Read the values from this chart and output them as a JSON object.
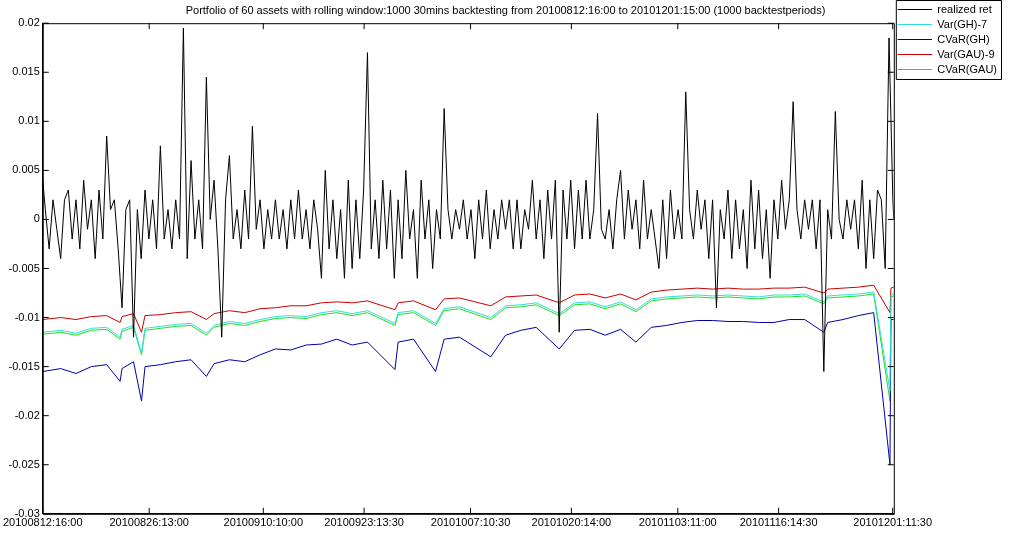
{
  "chart_data": {
    "type": "line",
    "title": "Portfolio of 60 assets with rolling window:1000 30mins backtesting from 20100812:16:00 to 20101201:15:00 (1000 backtestperiods)",
    "xlim": [
      "2010-08-12T16:00",
      "2010-12-01T15:00"
    ],
    "xticks": [
      {
        "value": "2010-08-12T16:00",
        "label": "20100812:16:00"
      },
      {
        "value": "2010-08-26T13:00",
        "label": "20100826:13:00"
      },
      {
        "value": "2010-09-10T10:00",
        "label": "20100910:10:00"
      },
      {
        "value": "2010-09-23T13:30",
        "label": "20100923:13:30"
      },
      {
        "value": "2010-10-07T10:30",
        "label": "20101007:10:30"
      },
      {
        "value": "2010-10-20T14:00",
        "label": "20101020:14:00"
      },
      {
        "value": "2010-11-03T11:00",
        "label": "20101103:11:00"
      },
      {
        "value": "2010-11-16T14:30",
        "label": "20101116:14:30"
      },
      {
        "value": "2010-12-01T11:30",
        "label": "20101201:11:30"
      }
    ],
    "ylim": [
      -0.03,
      0.02
    ],
    "yticks": [
      -0.03,
      -0.025,
      -0.02,
      -0.015,
      -0.01,
      -0.005,
      0,
      0.005,
      0.01,
      0.015,
      0.02
    ],
    "grid": false,
    "legend": "top right",
    "marker": "none",
    "line_style": "solid",
    "x": [
      "2010-08-12T16:00",
      "2010-08-15",
      "2010-08-17",
      "2010-08-19",
      "2010-08-21",
      "2010-08-22T18:00",
      "2010-08-23",
      "2010-08-24T12:00",
      "2010-08-25T13:00",
      "2010-08-26",
      "2010-08-28",
      "2010-08-30",
      "2010-09-01",
      "2010-09-03",
      "2010-09-04",
      "2010-09-06",
      "2010-09-08",
      "2010-09-10",
      "2010-09-12",
      "2010-09-14",
      "2010-09-16",
      "2010-09-18",
      "2010-09-20",
      "2010-09-22",
      "2010-09-24",
      "2010-09-27T14:00",
      "2010-09-28",
      "2010-09-30",
      "2010-10-02T21:00",
      "2010-10-04",
      "2010-10-06",
      "2010-10-10T02:00",
      "2010-10-12",
      "2010-10-14",
      "2010-10-16",
      "2010-10-19",
      "2010-10-21",
      "2010-10-23",
      "2010-10-25",
      "2010-10-27",
      "2010-10-29",
      "2010-10-31",
      "2010-11-02",
      "2010-11-04",
      "2010-11-06",
      "2010-11-08",
      "2010-11-10",
      "2010-11-12",
      "2010-11-14",
      "2010-11-16",
      "2010-11-18",
      "2010-11-20",
      "2010-11-22T12:00",
      "2010-11-23",
      "2010-11-25",
      "2010-11-27",
      "2010-11-29",
      "2010-12-01T03:00",
      "2010-12-01T06:00",
      "2010-12-01T15:00"
    ],
    "series": [
      {
        "name": "realized ret",
        "color": "#000000",
        "x": [
          "2010-08-12T16:00",
          "2010-08-13T00:00",
          "2010-08-13T12:00",
          "2010-08-14T00:00",
          "2010-08-14T12:00",
          "2010-08-15T00:00",
          "2010-08-15T12:00",
          "2010-08-16T00:00",
          "2010-08-16T12:00",
          "2010-08-17T00:00",
          "2010-08-17T12:00",
          "2010-08-18T00:00",
          "2010-08-18T12:00",
          "2010-08-19T00:00",
          "2010-08-19T12:00",
          "2010-08-20T00:00",
          "2010-08-20T12:00",
          "2010-08-21T00:00",
          "2010-08-21T12:00",
          "2010-08-22T00:00",
          "2010-08-22T12:00",
          "2010-08-23T00:00",
          "2010-08-23T12:00",
          "2010-08-24T00:00",
          "2010-08-24T12:00",
          "2010-08-25T00:00",
          "2010-08-25T12:00",
          "2010-08-26T00:00",
          "2010-08-26T12:00",
          "2010-08-27T00:00",
          "2010-08-27T12:00",
          "2010-08-28T00:00",
          "2010-08-28T12:00",
          "2010-08-29T00:00",
          "2010-08-29T12:00",
          "2010-08-30T00:00",
          "2010-08-30T12:00",
          "2010-08-31T00:00",
          "2010-08-31T12:00",
          "2010-09-01T00:00",
          "2010-09-01T12:00",
          "2010-09-02T00:00",
          "2010-09-02T12:00",
          "2010-09-03T00:00",
          "2010-09-03T12:00",
          "2010-09-04T00:00",
          "2010-09-04T12:00",
          "2010-09-05T00:00",
          "2010-09-05T12:00",
          "2010-09-06T00:00",
          "2010-09-06T12:00",
          "2010-09-07T00:00",
          "2010-09-07T12:00",
          "2010-09-08T00:00",
          "2010-09-08T12:00",
          "2010-09-09T00:00",
          "2010-09-09T12:00",
          "2010-09-10T00:00",
          "2010-09-10T12:00",
          "2010-09-11T00:00",
          "2010-09-11T12:00",
          "2010-09-12T00:00",
          "2010-09-12T12:00",
          "2010-09-13T00:00",
          "2010-09-13T12:00",
          "2010-09-14T00:00",
          "2010-09-14T12:00",
          "2010-09-15T00:00",
          "2010-09-15T12:00",
          "2010-09-16T00:00",
          "2010-09-16T12:00",
          "2010-09-17T00:00",
          "2010-09-17T12:00",
          "2010-09-18T00:00",
          "2010-09-18T12:00",
          "2010-09-19T00:00",
          "2010-09-19T12:00",
          "2010-09-20T00:00",
          "2010-09-20T12:00",
          "2010-09-21T00:00",
          "2010-09-21T12:00",
          "2010-09-22T00:00",
          "2010-09-22T12:00",
          "2010-09-23T00:00",
          "2010-09-23T12:00",
          "2010-09-24T00:00",
          "2010-09-24T12:00",
          "2010-09-25T00:00",
          "2010-09-25T12:00",
          "2010-09-26T00:00",
          "2010-09-26T12:00",
          "2010-09-27T00:00",
          "2010-09-27T12:00",
          "2010-09-28T00:00",
          "2010-09-28T12:00",
          "2010-09-29T00:00",
          "2010-09-29T12:00",
          "2010-09-30T00:00",
          "2010-09-30T12:00",
          "2010-10-01T00:00",
          "2010-10-01T12:00",
          "2010-10-02T00:00",
          "2010-10-02T12:00",
          "2010-10-03T00:00",
          "2010-10-03T12:00",
          "2010-10-04T00:00",
          "2010-10-04T12:00",
          "2010-10-05T00:00",
          "2010-10-05T12:00",
          "2010-10-06T00:00",
          "2010-10-06T12:00",
          "2010-10-07T00:00",
          "2010-10-07T12:00",
          "2010-10-08T00:00",
          "2010-10-08T12:00",
          "2010-10-09T00:00",
          "2010-10-09T12:00",
          "2010-10-10T00:00",
          "2010-10-10T12:00",
          "2010-10-11T00:00",
          "2010-10-11T12:00",
          "2010-10-12T00:00",
          "2010-10-12T12:00",
          "2010-10-13T00:00",
          "2010-10-13T12:00",
          "2010-10-14T00:00",
          "2010-10-14T12:00",
          "2010-10-15T00:00",
          "2010-10-15T12:00",
          "2010-10-16T00:00",
          "2010-10-16T12:00",
          "2010-10-17T00:00",
          "2010-10-17T12:00",
          "2010-10-18T00:00",
          "2010-10-18T12:00",
          "2010-10-19T00:00",
          "2010-10-19T12:00",
          "2010-10-20T00:00",
          "2010-10-20T12:00",
          "2010-10-21T00:00",
          "2010-10-21T12:00",
          "2010-10-22T00:00",
          "2010-10-22T12:00",
          "2010-10-23T00:00",
          "2010-10-23T12:00",
          "2010-10-24T00:00",
          "2010-10-24T12:00",
          "2010-10-25T00:00",
          "2010-10-25T12:00",
          "2010-10-26T00:00",
          "2010-10-26T12:00",
          "2010-10-27T00:00",
          "2010-10-27T12:00",
          "2010-10-28T00:00",
          "2010-10-28T12:00",
          "2010-10-29T00:00",
          "2010-10-29T12:00",
          "2010-10-30T00:00",
          "2010-10-30T12:00",
          "2010-10-31T00:00",
          "2010-10-31T12:00",
          "2010-11-01T00:00",
          "2010-11-01T12:00",
          "2010-11-02T00:00",
          "2010-11-02T12:00",
          "2010-11-03T00:00",
          "2010-11-03T12:00",
          "2010-11-04T00:00",
          "2010-11-04T12:00",
          "2010-11-05T00:00",
          "2010-11-05T12:00",
          "2010-11-06T00:00",
          "2010-11-06T12:00",
          "2010-11-07T00:00",
          "2010-11-07T12:00",
          "2010-11-08T00:00",
          "2010-11-08T12:00",
          "2010-11-09T00:00",
          "2010-11-09T12:00",
          "2010-11-10T00:00",
          "2010-11-10T12:00",
          "2010-11-11T00:00",
          "2010-11-11T12:00",
          "2010-11-12T00:00",
          "2010-11-12T12:00",
          "2010-11-13T00:00",
          "2010-11-13T12:00",
          "2010-11-14T00:00",
          "2010-11-14T12:00",
          "2010-11-15T00:00",
          "2010-11-15T12:00",
          "2010-11-16T00:00",
          "2010-11-16T12:00",
          "2010-11-17T00:00",
          "2010-11-17T12:00",
          "2010-11-18T00:00",
          "2010-11-18T12:00",
          "2010-11-19T00:00",
          "2010-11-19T12:00",
          "2010-11-20T00:00",
          "2010-11-20T12:00",
          "2010-11-21T00:00",
          "2010-11-21T12:00",
          "2010-11-22T00:00",
          "2010-11-22T12:00",
          "2010-11-23T00:00",
          "2010-11-23T12:00",
          "2010-11-24T00:00",
          "2010-11-24T12:00",
          "2010-11-25T00:00",
          "2010-11-25T12:00",
          "2010-11-26T00:00",
          "2010-11-26T12:00",
          "2010-11-27T00:00",
          "2010-11-27T12:00",
          "2010-11-28T00:00",
          "2010-11-28T12:00",
          "2010-11-29T00:00",
          "2010-11-29T12:00",
          "2010-11-30T00:00",
          "2010-11-30T12:00",
          "2010-12-01T00:00",
          "2010-12-01T12:00",
          "2010-12-01T15:00"
        ],
        "values": [
          0.004,
          0.001,
          -0.003,
          0.002,
          -0.001,
          -0.004,
          0.002,
          0.003,
          -0.002,
          0.002,
          -0.003,
          0.004,
          -0.001,
          0.002,
          -0.004,
          0.003,
          -0.002,
          0.0085,
          0.001,
          0.002,
          -0.003,
          -0.009,
          0.001,
          0.002,
          -0.012,
          0.001,
          -0.004,
          0.003,
          -0.002,
          0.002,
          -0.003,
          0.0075,
          -0.002,
          0.001,
          -0.003,
          0.002,
          -0.002,
          0.0195,
          -0.004,
          0.006,
          -0.002,
          0.002,
          -0.003,
          0.0145,
          0,
          0.004,
          -0.003,
          -0.012,
          0.002,
          0.0065,
          -0.002,
          0.001,
          -0.003,
          0.003,
          -0.002,
          0.0095,
          -0.001,
          0.002,
          -0.003,
          0.001,
          -0.002,
          0.002,
          -0.002,
          0.001,
          -0.003,
          0.002,
          -0.002,
          0.003,
          -0.002,
          0.001,
          -0.003,
          0.002,
          -0.001,
          -0.006,
          0.005,
          -0.003,
          0.002,
          -0.004,
          0.001,
          -0.006,
          0.004,
          -0.005,
          0.002,
          -0.004,
          0.003,
          0.017,
          -0.003,
          0.002,
          -0.004,
          0.004,
          -0.003,
          0.003,
          -0.006,
          0.002,
          -0.004,
          0.005,
          -0.002,
          0.001,
          -0.006,
          0.004,
          -0.002,
          0.002,
          -0.005,
          0.001,
          -0.002,
          0.0113,
          0.001,
          -0.002,
          0.001,
          -0.001,
          0.002,
          -0.002,
          0.001,
          -0.004,
          0.002,
          -0.002,
          0.003,
          -0.003,
          0.001,
          -0.002,
          0.002,
          -0.001,
          0.002,
          -0.003,
          0.002,
          -0.003,
          0.001,
          -0.001,
          0.004,
          -0.002,
          0.002,
          -0.004,
          0.003,
          -0.002,
          0.004,
          -0.0115,
          0.003,
          -0.002,
          0.004,
          -0.003,
          0.003,
          -0.002,
          0.004,
          -0.002,
          0.001,
          0.0108,
          -0.001,
          -0.002,
          0.001,
          -0.003,
          0.002,
          0.005,
          -0.002,
          0.003,
          -0.001,
          0.002,
          -0.003,
          0.004,
          -0.002,
          0.001,
          -0.002,
          -0.005,
          0.002,
          -0.004,
          0.003,
          -0.002,
          0.001,
          -0.002,
          0.013,
          0.001,
          -0.002,
          0.003,
          -0.001,
          0.002,
          -0.004,
          0.002,
          -0.009,
          0.001,
          -0.002,
          0.003,
          -0.004,
          0.002,
          -0.003,
          0.001,
          -0.005,
          0.004,
          -0.003,
          0.003,
          -0.004,
          0.001,
          -0.006,
          0.002,
          -0.002,
          0.004,
          -0.001,
          0.002,
          0.012,
          0.001,
          -0.002,
          0.002,
          -0.001,
          0.002,
          -0.003,
          0.002,
          -0.0155,
          0.001,
          -0.002,
          0.011,
          0,
          -0.002,
          0.002,
          -0.001,
          0.002,
          -0.003,
          0.004,
          -0.005,
          0.002,
          -0.004,
          0.003,
          0.002,
          -0.005,
          0.0185,
          0.002,
          0
        ]
      },
      {
        "name": "Var(GH)-7",
        "color": "#33dddd",
        "values": [
          -0.0115,
          -0.0113,
          -0.0116,
          -0.0111,
          -0.011,
          -0.012,
          -0.0112,
          -0.0108,
          -0.0136,
          -0.0111,
          -0.0109,
          -0.0107,
          -0.0106,
          -0.0116,
          -0.0108,
          -0.0104,
          -0.0106,
          -0.0102,
          -0.0099,
          -0.0098,
          -0.0099,
          -0.0095,
          -0.0093,
          -0.0096,
          -0.0093,
          -0.0106,
          -0.0095,
          -0.0093,
          -0.0106,
          -0.0091,
          -0.0089,
          -0.01,
          -0.0088,
          -0.0087,
          -0.0085,
          -0.0096,
          -0.0085,
          -0.0084,
          -0.0089,
          -0.0084,
          -0.0092,
          -0.0081,
          -0.0079,
          -0.0078,
          -0.0077,
          -0.0078,
          -0.0077,
          -0.0078,
          -0.0079,
          -0.0077,
          -0.0077,
          -0.0076,
          -0.0084,
          -0.0078,
          -0.0077,
          -0.0076,
          -0.0074,
          -0.0175,
          -0.0077,
          -0.0076
        ]
      },
      {
        "name": "CVaR(GH)",
        "color": "#0000aa",
        "values": [
          -0.0155,
          -0.0152,
          -0.0157,
          -0.015,
          -0.0148,
          -0.0165,
          -0.0152,
          -0.0145,
          -0.0185,
          -0.015,
          -0.0148,
          -0.0145,
          -0.0143,
          -0.016,
          -0.0147,
          -0.0143,
          -0.0145,
          -0.0138,
          -0.0132,
          -0.0133,
          -0.0128,
          -0.0127,
          -0.0122,
          -0.0128,
          -0.0125,
          -0.0153,
          -0.0125,
          -0.0122,
          -0.0155,
          -0.0122,
          -0.012,
          -0.014,
          -0.0118,
          -0.0113,
          -0.011,
          -0.0132,
          -0.0113,
          -0.0112,
          -0.0118,
          -0.0112,
          -0.0125,
          -0.011,
          -0.0108,
          -0.0105,
          -0.0103,
          -0.0103,
          -0.0104,
          -0.0104,
          -0.0105,
          -0.0105,
          -0.0102,
          -0.0102,
          -0.0115,
          -0.0105,
          -0.0102,
          -0.0098,
          -0.0095,
          -0.025,
          -0.0102,
          -0.0102
        ]
      },
      {
        "name": "Var(GAU)-9",
        "color": "#cc0000",
        "values": [
          -0.0102,
          -0.01,
          -0.0102,
          -0.0099,
          -0.0098,
          -0.0105,
          -0.0099,
          -0.0096,
          -0.0115,
          -0.0098,
          -0.0097,
          -0.0095,
          -0.0094,
          -0.0102,
          -0.0096,
          -0.0093,
          -0.0095,
          -0.0091,
          -0.009,
          -0.0088,
          -0.0088,
          -0.0085,
          -0.0084,
          -0.0085,
          -0.0083,
          -0.0092,
          -0.0085,
          -0.0083,
          -0.0092,
          -0.0081,
          -0.008,
          -0.0088,
          -0.0079,
          -0.0078,
          -0.0077,
          -0.0085,
          -0.0077,
          -0.0076,
          -0.008,
          -0.0076,
          -0.0082,
          -0.0074,
          -0.0072,
          -0.0071,
          -0.007,
          -0.0071,
          -0.007,
          -0.0071,
          -0.0071,
          -0.007,
          -0.007,
          -0.0069,
          -0.0075,
          -0.0071,
          -0.007,
          -0.0069,
          -0.0067,
          -0.0095,
          -0.007,
          -0.0069
        ]
      },
      {
        "name": "CVaR(GAU)",
        "color": "#22dd22",
        "values": [
          -0.0117,
          -0.0115,
          -0.0118,
          -0.0113,
          -0.0112,
          -0.0122,
          -0.0114,
          -0.011,
          -0.0138,
          -0.0113,
          -0.0111,
          -0.0109,
          -0.0108,
          -0.0118,
          -0.011,
          -0.0106,
          -0.0108,
          -0.0104,
          -0.0101,
          -0.01,
          -0.0101,
          -0.0097,
          -0.0095,
          -0.0098,
          -0.0095,
          -0.0108,
          -0.0097,
          -0.0095,
          -0.0108,
          -0.0093,
          -0.0091,
          -0.0102,
          -0.009,
          -0.0089,
          -0.0087,
          -0.0098,
          -0.0087,
          -0.0086,
          -0.0091,
          -0.0086,
          -0.0094,
          -0.0083,
          -0.0081,
          -0.008,
          -0.0079,
          -0.008,
          -0.0079,
          -0.008,
          -0.0081,
          -0.0079,
          -0.0079,
          -0.0078,
          -0.0086,
          -0.008,
          -0.0079,
          -0.0078,
          -0.0076,
          -0.0185,
          -0.0079,
          -0.0078
        ]
      }
    ]
  }
}
